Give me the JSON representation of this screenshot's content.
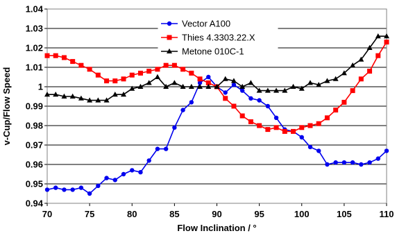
{
  "chart_data": {
    "type": "line",
    "xlabel": "Flow Inclination / °",
    "ylabel": "v-Cup/Flow Speed",
    "xlim": [
      70,
      110
    ],
    "ylim": [
      0.94,
      1.04
    ],
    "xticks": [
      70,
      75,
      80,
      85,
      90,
      95,
      100,
      105,
      110
    ],
    "xtick_labels": [
      "70",
      "75",
      "80",
      "85",
      "90",
      "95",
      "100",
      "105",
      "110"
    ],
    "yticks": [
      0.94,
      0.95,
      0.96,
      0.97,
      0.98,
      0.99,
      1.0,
      1.01,
      1.02,
      1.03,
      1.04
    ],
    "ytick_labels": [
      "0.94",
      "0.95",
      "0.96",
      "0.97",
      "0.98",
      "0.99",
      "1",
      "1.01",
      "1.02",
      "1.03",
      "1.04"
    ],
    "grid": "horizontal",
    "legend_position": "top-center",
    "series": [
      {
        "name": "Vector A100",
        "color": "#0000ee",
        "marker": "circle",
        "x": [
          70,
          71,
          72,
          73,
          74,
          75,
          76,
          77,
          78,
          79,
          80,
          81,
          82,
          83,
          84,
          85,
          86,
          87,
          88,
          89,
          90,
          91,
          92,
          93,
          94,
          95,
          96,
          97,
          98,
          99,
          100,
          101,
          102,
          103,
          104,
          105,
          106,
          107,
          108,
          109,
          110
        ],
        "y": [
          0.947,
          0.948,
          0.947,
          0.947,
          0.948,
          0.945,
          0.949,
          0.953,
          0.952,
          0.955,
          0.957,
          0.956,
          0.962,
          0.968,
          0.968,
          0.979,
          0.988,
          0.992,
          1.002,
          1.005,
          1.0,
          0.997,
          1.001,
          0.998,
          0.994,
          0.993,
          0.99,
          0.984,
          0.978,
          0.977,
          0.974,
          0.969,
          0.967,
          0.96,
          0.961,
          0.961,
          0.961,
          0.96,
          0.961,
          0.963,
          0.967
        ]
      },
      {
        "name": "Thies 4.3303.22.X",
        "color": "#ff0000",
        "marker": "square",
        "x": [
          70,
          71,
          72,
          73,
          74,
          75,
          76,
          77,
          78,
          79,
          80,
          81,
          82,
          83,
          84,
          85,
          86,
          87,
          88,
          89,
          90,
          91,
          92,
          93,
          94,
          95,
          96,
          97,
          98,
          99,
          100,
          101,
          102,
          103,
          104,
          105,
          106,
          107,
          108,
          109,
          110
        ],
        "y": [
          1.016,
          1.016,
          1.015,
          1.013,
          1.011,
          1.009,
          1.006,
          1.003,
          1.003,
          1.004,
          1.006,
          1.007,
          1.008,
          1.009,
          1.011,
          1.011,
          1.009,
          1.007,
          1.004,
          1.002,
          1.0,
          0.994,
          0.99,
          0.985,
          0.982,
          0.98,
          0.978,
          0.979,
          0.977,
          0.977,
          0.979,
          0.98,
          0.981,
          0.984,
          0.988,
          0.992,
          0.998,
          1.004,
          1.008,
          1.016,
          1.023
        ]
      },
      {
        "name": "Metone 010C-1",
        "color": "#000000",
        "marker": "triangle",
        "x": [
          70,
          71,
          72,
          73,
          74,
          75,
          76,
          77,
          78,
          79,
          80,
          81,
          82,
          83,
          84,
          85,
          86,
          87,
          88,
          89,
          90,
          91,
          92,
          93,
          94,
          95,
          96,
          97,
          98,
          99,
          100,
          101,
          102,
          103,
          104,
          105,
          106,
          107,
          108,
          109,
          110
        ],
        "y": [
          0.996,
          0.996,
          0.995,
          0.995,
          0.994,
          0.993,
          0.993,
          0.993,
          0.996,
          0.996,
          0.999,
          1.0,
          1.002,
          1.005,
          1.0,
          1.002,
          1.0,
          1.0,
          1.0,
          1.0,
          1.0,
          1.004,
          1.003,
          1.0,
          1.002,
          0.998,
          0.998,
          0.998,
          0.998,
          1.0,
          0.999,
          1.002,
          1.001,
          1.003,
          1.004,
          1.007,
          1.011,
          1.014,
          1.02,
          1.026,
          1.026
        ]
      }
    ]
  }
}
